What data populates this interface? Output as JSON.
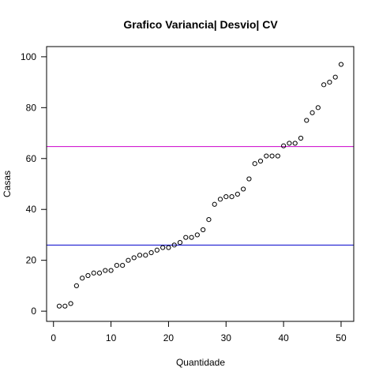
{
  "chart_data": {
    "type": "scatter",
    "title": "Grafico Variancia| Desvio| CV",
    "xlabel": "Quantidade",
    "ylabel": "Casas",
    "xlim": [
      -1.2,
      52.2
    ],
    "ylim": [
      -4,
      104
    ],
    "x_ticks": [
      0,
      10,
      20,
      30,
      40,
      50
    ],
    "y_ticks": [
      0,
      20,
      40,
      60,
      80,
      100
    ],
    "point_style": "open-circle",
    "series": [
      {
        "x": [
          1,
          2,
          3,
          4,
          5,
          6,
          7,
          8,
          9,
          10,
          11,
          12,
          13,
          14,
          15,
          16,
          17,
          18,
          19,
          20,
          21,
          22,
          23,
          24,
          25,
          26,
          27,
          28,
          29,
          30,
          31,
          32,
          33,
          34,
          35,
          36,
          37,
          38,
          39,
          40,
          41,
          42,
          43,
          44,
          45,
          46,
          47,
          48,
          49,
          50
        ],
        "y": [
          2,
          2,
          3,
          10,
          13,
          14,
          15,
          15,
          16,
          16,
          18,
          18,
          20,
          21,
          22,
          22,
          23,
          24,
          25,
          25,
          26,
          27,
          29,
          29,
          30,
          32,
          36,
          42,
          44,
          45,
          45,
          46,
          48,
          52,
          58,
          59,
          61,
          61,
          61,
          65,
          66,
          66,
          68,
          75,
          78,
          80,
          89,
          90,
          92,
          97
        ]
      }
    ],
    "hlines": [
      {
        "y": 64.7,
        "color": "#cc00cc"
      },
      {
        "y": 26.0,
        "color": "#0000cc"
      }
    ]
  }
}
